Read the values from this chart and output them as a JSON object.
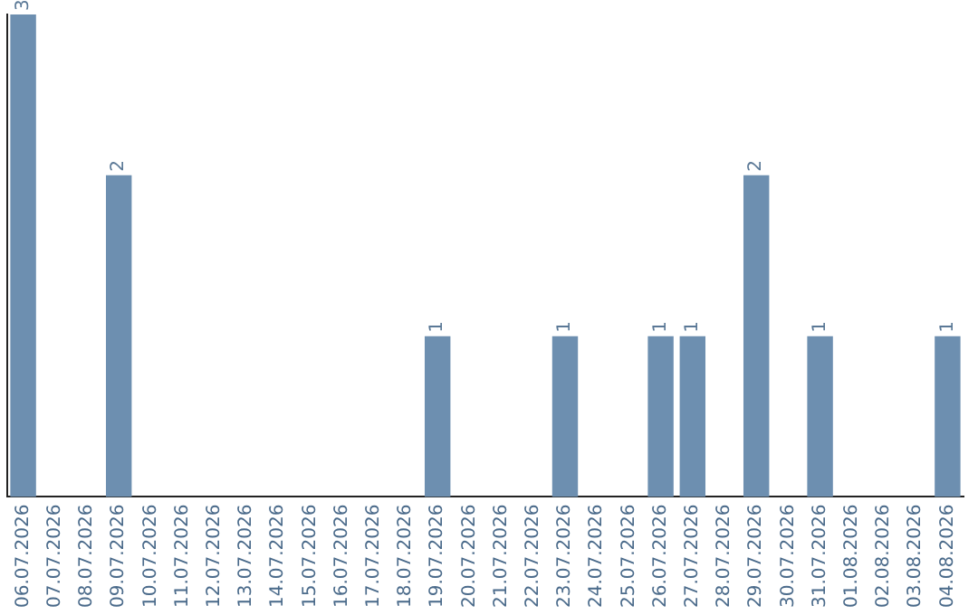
{
  "chart_data": {
    "type": "bar",
    "categories": [
      "06.07.2026",
      "07.07.2026",
      "08.07.2026",
      "09.07.2026",
      "10.07.2026",
      "11.07.2026",
      "12.07.2026",
      "13.07.2026",
      "14.07.2026",
      "15.07.2026",
      "16.07.2026",
      "17.07.2026",
      "18.07.2026",
      "19.07.2026",
      "20.07.2026",
      "21.07.2026",
      "22.07.2026",
      "23.07.2026",
      "24.07.2026",
      "25.07.2026",
      "26.07.2026",
      "27.07.2026",
      "28.07.2026",
      "29.07.2026",
      "30.07.2026",
      "31.07.2026",
      "01.08.2026",
      "02.08.2026",
      "03.08.2026",
      "04.08.2026"
    ],
    "values": [
      3,
      0,
      0,
      2,
      0,
      0,
      0,
      0,
      0,
      0,
      0,
      0,
      0,
      1,
      0,
      0,
      0,
      1,
      0,
      0,
      1,
      1,
      0,
      2,
      0,
      1,
      0,
      0,
      0,
      1
    ],
    "value_labels": [
      "3",
      null,
      null,
      "2",
      null,
      null,
      null,
      null,
      null,
      null,
      null,
      null,
      null,
      "1",
      null,
      null,
      null,
      "1",
      null,
      null,
      "1",
      "1",
      null,
      "2",
      null,
      "1",
      null,
      null,
      null,
      "1"
    ],
    "color": "#6d8fb0",
    "grid": false,
    "legend": false,
    "tick_labels": "x"
  }
}
